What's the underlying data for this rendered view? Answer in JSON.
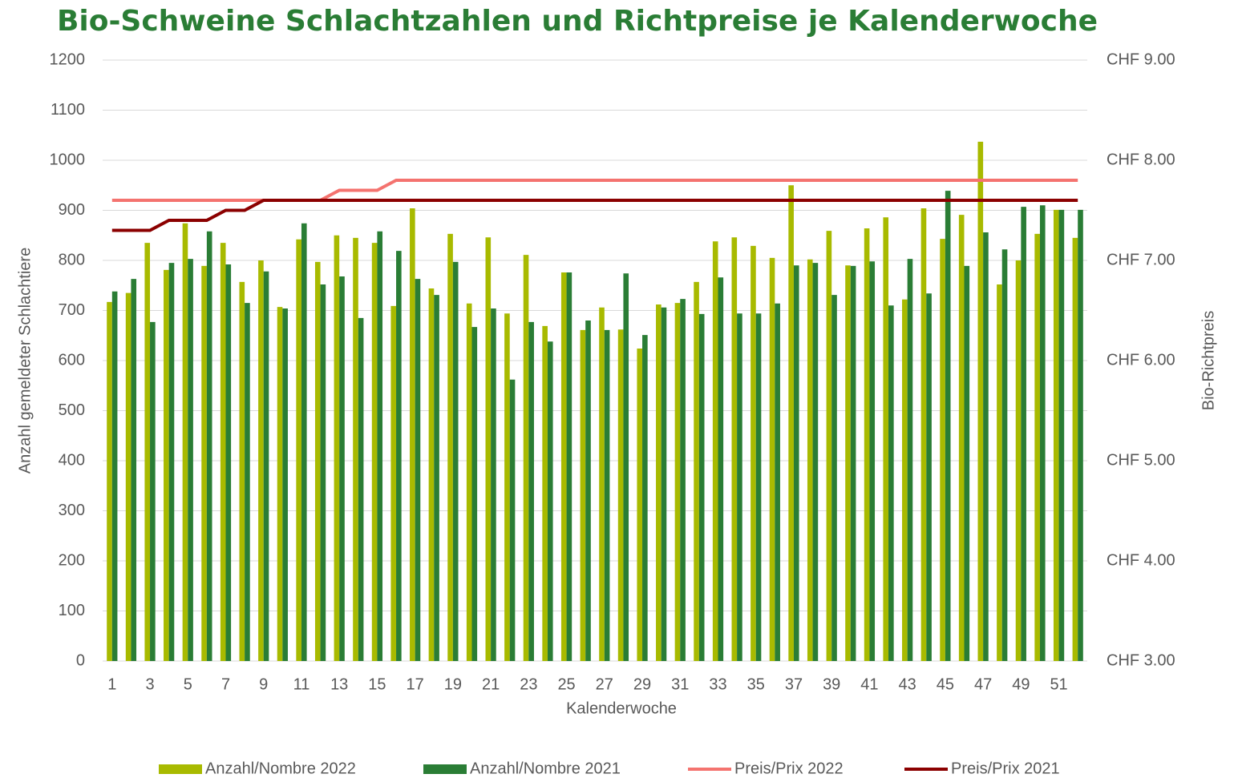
{
  "chart_data": {
    "type": "bar",
    "title": "Bio-Schweine Schlachtzahlen und Richtpreise je Kalenderwoche",
    "x_label": "Kalenderwoche",
    "y_label": "Anzahl gemeldeter Schlachtiere",
    "y2_label": "Bio-Richtpreis",
    "categories": [
      1,
      null,
      3,
      null,
      5,
      null,
      7,
      null,
      9,
      null,
      11,
      null,
      13,
      null,
      15,
      null,
      17,
      null,
      19,
      null,
      21,
      null,
      23,
      null,
      25,
      null,
      27,
      null,
      29,
      null,
      31,
      null,
      33,
      null,
      35,
      null,
      37,
      null,
      39,
      null,
      41,
      null,
      43,
      null,
      45,
      null,
      47,
      null,
      49,
      null,
      51,
      null
    ],
    "series": [
      {
        "name": "Anzahl/Nombre 2022",
        "type": "bar",
        "color": "#a8ba00",
        "values": [
          717,
          735,
          835,
          781,
          874,
          789,
          835,
          757,
          800,
          707,
          842,
          797,
          850,
          845,
          835,
          709,
          904,
          744,
          853,
          714,
          846,
          694,
          811,
          669,
          776,
          661,
          706,
          662,
          624,
          712,
          715,
          757,
          838,
          846,
          829,
          805,
          950,
          802,
          859,
          790,
          864,
          886,
          722,
          904,
          843,
          891,
          1037,
          752,
          800,
          853,
          901,
          845
        ]
      },
      {
        "name": "Anzahl/Nombre 2021",
        "type": "bar",
        "color": "#2a7d35",
        "values": [
          738,
          763,
          677,
          795,
          803,
          858,
          792,
          715,
          778,
          704,
          874,
          752,
          768,
          685,
          858,
          819,
          763,
          731,
          797,
          667,
          704,
          562,
          677,
          638,
          776,
          680,
          661,
          774,
          651,
          706,
          723,
          693,
          766,
          694,
          694,
          714,
          790,
          795,
          731,
          789,
          798,
          710,
          803,
          734,
          939,
          789,
          856,
          822,
          907,
          910,
          901,
          901
        ]
      },
      {
        "name": "Preis/Prix 2022",
        "type": "line",
        "axis": "y2",
        "color": "#f4736f",
        "values": [
          7.6,
          7.6,
          7.6,
          7.6,
          7.6,
          7.6,
          7.6,
          7.6,
          7.6,
          7.6,
          7.6,
          7.6,
          7.7,
          7.7,
          7.7,
          7.8,
          7.8,
          7.8,
          7.8,
          7.8,
          7.8,
          7.8,
          7.8,
          7.8,
          7.8,
          7.8,
          7.8,
          7.8,
          7.8,
          7.8,
          7.8,
          7.8,
          7.8,
          7.8,
          7.8,
          7.8,
          7.8,
          7.8,
          7.8,
          7.8,
          7.8,
          7.8,
          7.8,
          7.8,
          7.8,
          7.8,
          7.8,
          7.8,
          7.8,
          7.8,
          7.8,
          7.8
        ]
      },
      {
        "name": "Preis/Prix 2021",
        "type": "line",
        "axis": "y2",
        "color": "#8b0000",
        "values": [
          7.3,
          7.3,
          7.3,
          7.4,
          7.4,
          7.4,
          7.5,
          7.5,
          7.6,
          7.6,
          7.6,
          7.6,
          7.6,
          7.6,
          7.6,
          7.6,
          7.6,
          7.6,
          7.6,
          7.6,
          7.6,
          7.6,
          7.6,
          7.6,
          7.6,
          7.6,
          7.6,
          7.6,
          7.6,
          7.6,
          7.6,
          7.6,
          7.6,
          7.6,
          7.6,
          7.6,
          7.6,
          7.6,
          7.6,
          7.6,
          7.6,
          7.6,
          7.6,
          7.6,
          7.6,
          7.6,
          7.6,
          7.6,
          7.6,
          7.6,
          7.6,
          7.6
        ]
      }
    ],
    "ylim": [
      0,
      1200
    ],
    "yticks": [
      0,
      100,
      200,
      300,
      400,
      500,
      600,
      700,
      800,
      900,
      1000,
      1100,
      1200
    ],
    "y2lim": [
      3,
      9
    ],
    "y2ticks": [
      {
        "value": 3,
        "label": "CHF 3.00"
      },
      {
        "value": 4,
        "label": "CHF 4.00"
      },
      {
        "value": 5,
        "label": "CHF 5.00"
      },
      {
        "value": 6,
        "label": "CHF 6.00"
      },
      {
        "value": 7,
        "label": "CHF 7.00"
      },
      {
        "value": 8,
        "label": "CHF 8.00"
      },
      {
        "value": 9,
        "label": "CHF 9.00"
      }
    ],
    "grid": true,
    "legend": "bottom"
  }
}
